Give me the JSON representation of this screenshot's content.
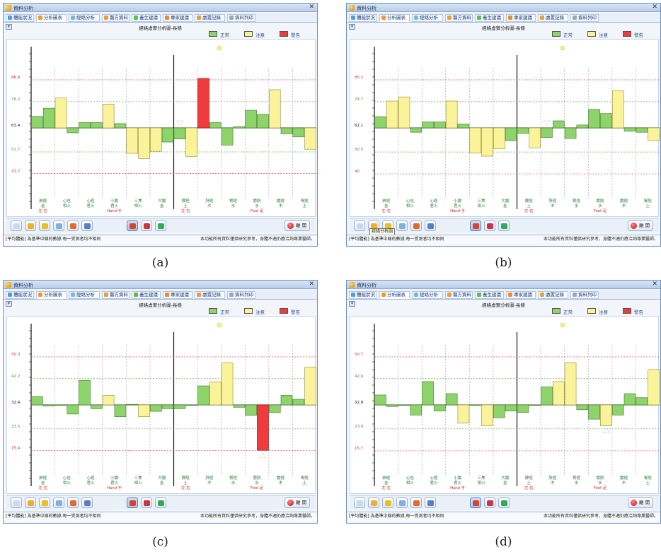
{
  "window_title": "資料分析",
  "tabs": [
    "體能狀況",
    "分析圖表",
    "經絡分析",
    "醫方資料",
    "養生建議",
    "專家建議",
    "處置記錄",
    "資料列印"
  ],
  "chart_title": "經絡虛實分析圖-長條",
  "legend": [
    {
      "label": "正常",
      "color": "#8fd36b"
    },
    {
      "label": "注意",
      "color": "#fbf39a"
    },
    {
      "label": "警告",
      "color": "#ef3b3b"
    }
  ],
  "meridians": [
    {
      "organ": "肺經",
      "element": "金",
      "fire": ""
    },
    {
      "organ": "心包",
      "element": "相火",
      "fire": ""
    },
    {
      "organ": "心經",
      "element": "君火",
      "fire": ""
    },
    {
      "organ": "小腸",
      "element": "君火",
      "fire": ""
    },
    {
      "organ": "三焦",
      "element": "相火",
      "fire": ""
    },
    {
      "organ": "大腸",
      "element": "金",
      "fire": ""
    },
    {
      "organ": "脾經",
      "element": "土",
      "fire": ""
    },
    {
      "organ": "肝經",
      "element": "木",
      "fire": ""
    },
    {
      "organ": "腎經",
      "element": "水",
      "fire": ""
    },
    {
      "organ": "膀胱",
      "element": "水",
      "fire": ""
    },
    {
      "organ": "膽經",
      "element": "木",
      "fire": ""
    },
    {
      "organ": "胃經",
      "element": "土",
      "fire": ""
    }
  ],
  "side_left_label": "左 右",
  "hand_label": "Hand 手",
  "foot_label": "Foot 足",
  "tooltip": "經絡分析圖",
  "exit_label": "離 開",
  "status_left": "[平均體能] 為基準中線的數據,每一受測者均不相同",
  "status_right": "本功能所有資料僅供研究參考，身體不適仍應洽詢專業醫師。",
  "captions": [
    "(a)",
    "(b)",
    "(c)",
    "(d)"
  ],
  "panels": [
    {
      "id": "a",
      "y_ticks": [
        86.8,
        76.2,
        63.4,
        51.7,
        41.2
      ],
      "baseline": 63.4,
      "show_tooltip": false,
      "arrow": {
        "bar_index": 12,
        "direction": "down"
      },
      "bars": [
        {
          "v": 69.0,
          "s": "n"
        },
        {
          "v": 73.0,
          "s": "n"
        },
        {
          "v": 78.0,
          "s": "w"
        },
        {
          "v": 61.0,
          "s": "n"
        },
        {
          "v": 66.0,
          "s": "n"
        },
        {
          "v": 66.0,
          "s": "n"
        },
        {
          "v": 75.0,
          "s": "w"
        },
        {
          "v": 65.5,
          "s": "n"
        },
        {
          "v": 51.0,
          "s": "w"
        },
        {
          "v": 48.5,
          "s": "w"
        },
        {
          "v": 52.0,
          "s": "w"
        },
        {
          "v": 56.5,
          "s": "n"
        },
        {
          "v": 58.0,
          "s": "n"
        },
        {
          "v": 49.5,
          "s": "w"
        },
        {
          "v": 87.5,
          "s": "a"
        },
        {
          "v": 66.0,
          "s": "n"
        },
        {
          "v": 55.0,
          "s": "n"
        },
        {
          "v": 64.0,
          "s": "n"
        },
        {
          "v": 72.0,
          "s": "n"
        },
        {
          "v": 70.0,
          "s": "n"
        },
        {
          "v": 82.0,
          "s": "w"
        },
        {
          "v": 60.5,
          "s": "n"
        },
        {
          "v": 59.0,
          "s": "n"
        },
        {
          "v": 53.0,
          "s": "w"
        }
      ]
    },
    {
      "id": "b",
      "y_ticks": [
        85.2,
        74.7,
        62.1,
        50.5,
        40.0
      ],
      "baseline": 62.1,
      "show_tooltip": true,
      "arrow": {
        "bar_index": 14,
        "direction": "down"
      },
      "bars": [
        {
          "v": 67.5,
          "s": "n"
        },
        {
          "v": 75.0,
          "s": "w"
        },
        {
          "v": 77.0,
          "s": "w"
        },
        {
          "v": 60.0,
          "s": "n"
        },
        {
          "v": 65.0,
          "s": "n"
        },
        {
          "v": 65.0,
          "s": "n"
        },
        {
          "v": 75.0,
          "s": "w"
        },
        {
          "v": 64.0,
          "s": "n"
        },
        {
          "v": 50.0,
          "s": "w"
        },
        {
          "v": 48.5,
          "s": "w"
        },
        {
          "v": 52.0,
          "s": "w"
        },
        {
          "v": 56.0,
          "s": "n"
        },
        {
          "v": 59.5,
          "s": "n"
        },
        {
          "v": 52.5,
          "s": "w"
        },
        {
          "v": 57.5,
          "s": "n"
        },
        {
          "v": 65.5,
          "s": "n"
        },
        {
          "v": 57.0,
          "s": "n"
        },
        {
          "v": 63.5,
          "s": "n"
        },
        {
          "v": 71.0,
          "s": "n"
        },
        {
          "v": 69.0,
          "s": "n"
        },
        {
          "v": 80.0,
          "s": "w"
        },
        {
          "v": 60.5,
          "s": "n"
        },
        {
          "v": 60.0,
          "s": "n"
        },
        {
          "v": 56.0,
          "s": "w"
        }
      ]
    },
    {
      "id": "c",
      "y_ticks": [
        50.3,
        42.2,
        32.4,
        23.5,
        15.4
      ],
      "baseline": 32.4,
      "show_tooltip": false,
      "arrow": {
        "bar_index": 19,
        "direction": "up"
      },
      "bars": [
        {
          "v": 35.5,
          "s": "n"
        },
        {
          "v": 32.0,
          "s": "n"
        },
        {
          "v": 32.4,
          "s": "n"
        },
        {
          "v": 29.0,
          "s": "n"
        },
        {
          "v": 41.5,
          "s": "n"
        },
        {
          "v": 31.0,
          "s": "n"
        },
        {
          "v": 36.0,
          "s": "w"
        },
        {
          "v": 28.0,
          "s": "n"
        },
        {
          "v": 32.6,
          "s": "n"
        },
        {
          "v": 28.0,
          "s": "w"
        },
        {
          "v": 30.0,
          "s": "n"
        },
        {
          "v": 31.0,
          "s": "n"
        },
        {
          "v": 31.0,
          "s": "n"
        },
        {
          "v": 32.4,
          "s": "n"
        },
        {
          "v": 39.5,
          "s": "n"
        },
        {
          "v": 41.0,
          "s": "w"
        },
        {
          "v": 48.0,
          "s": "w"
        },
        {
          "v": 31.5,
          "s": "n"
        },
        {
          "v": 28.5,
          "s": "n"
        },
        {
          "v": 15.5,
          "s": "a"
        },
        {
          "v": 29.5,
          "s": "n"
        },
        {
          "v": 36.0,
          "s": "n"
        },
        {
          "v": 34.5,
          "s": "n"
        },
        {
          "v": 46.5,
          "s": "w"
        }
      ]
    },
    {
      "id": "d",
      "y_ticks": [
        50.7,
        42.6,
        32.8,
        23.9,
        15.7
      ],
      "baseline": 32.8,
      "show_tooltip": false,
      "arrow": {
        "bar_index": 19,
        "direction": "up"
      },
      "bars": [
        {
          "v": 36.5,
          "s": "n"
        },
        {
          "v": 32.2,
          "s": "n"
        },
        {
          "v": 32.8,
          "s": "n"
        },
        {
          "v": 29.0,
          "s": "n"
        },
        {
          "v": 41.5,
          "s": "n"
        },
        {
          "v": 30.5,
          "s": "n"
        },
        {
          "v": 37.0,
          "s": "n"
        },
        {
          "v": 26.0,
          "s": "w"
        },
        {
          "v": 32.8,
          "s": "n"
        },
        {
          "v": 25.0,
          "s": "w"
        },
        {
          "v": 28.0,
          "s": "n"
        },
        {
          "v": 30.5,
          "s": "n"
        },
        {
          "v": 30.0,
          "s": "n"
        },
        {
          "v": 32.6,
          "s": "n"
        },
        {
          "v": 39.5,
          "s": "n"
        },
        {
          "v": 41.5,
          "s": "w"
        },
        {
          "v": 48.5,
          "s": "w"
        },
        {
          "v": 31.0,
          "s": "n"
        },
        {
          "v": 27.5,
          "s": "n"
        },
        {
          "v": 25.0,
          "s": "w"
        },
        {
          "v": 29.0,
          "s": "n"
        },
        {
          "v": 37.0,
          "s": "n"
        },
        {
          "v": 35.5,
          "s": "n"
        },
        {
          "v": 46.0,
          "s": "w"
        }
      ]
    }
  ]
}
